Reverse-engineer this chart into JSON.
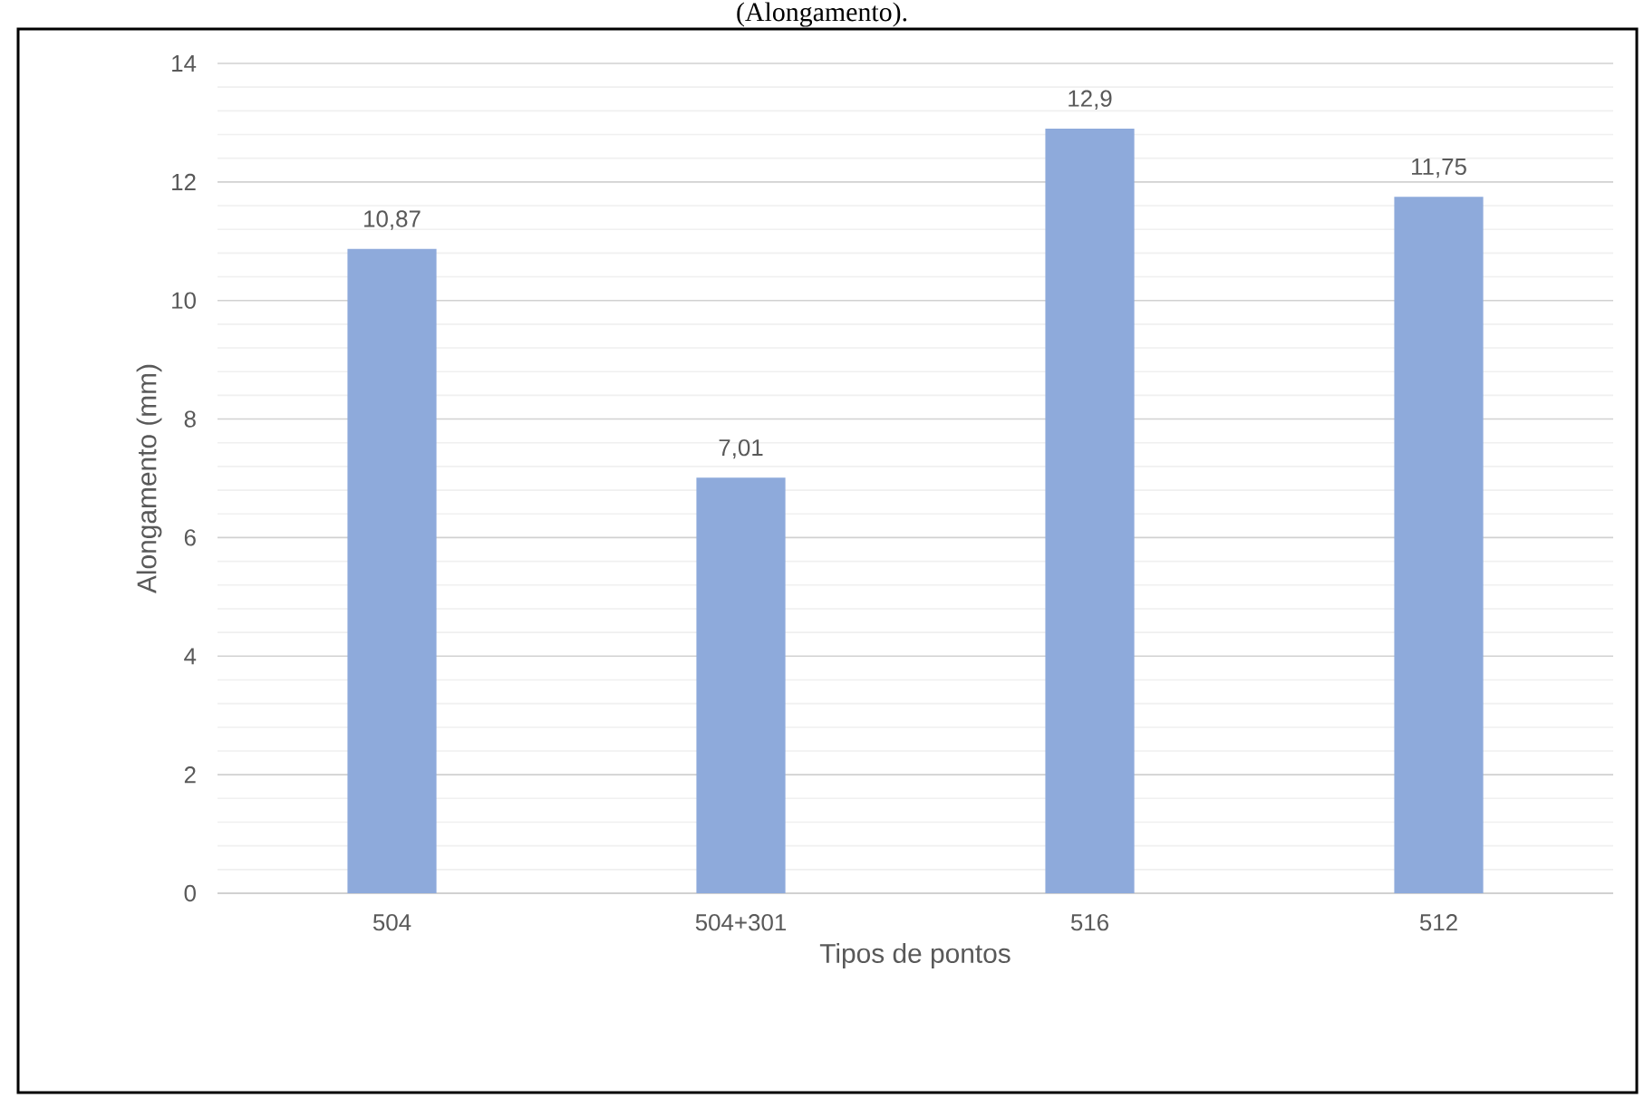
{
  "chart_data": {
    "type": "bar",
    "title": "(Alongamento).",
    "xlabel": "Tipos de pontos",
    "ylabel": "Alongamento (mm)",
    "categories": [
      "504",
      "504+301",
      "516",
      "512"
    ],
    "values": [
      10.87,
      7.01,
      12.9,
      11.75
    ],
    "value_labels": [
      "10,87",
      "7,01",
      "12,9",
      "11,75"
    ],
    "color": "#8eaadb",
    "ylim": [
      0,
      14
    ],
    "yticks": [
      0,
      2,
      4,
      6,
      8,
      10,
      12,
      14
    ],
    "grid": "y"
  }
}
